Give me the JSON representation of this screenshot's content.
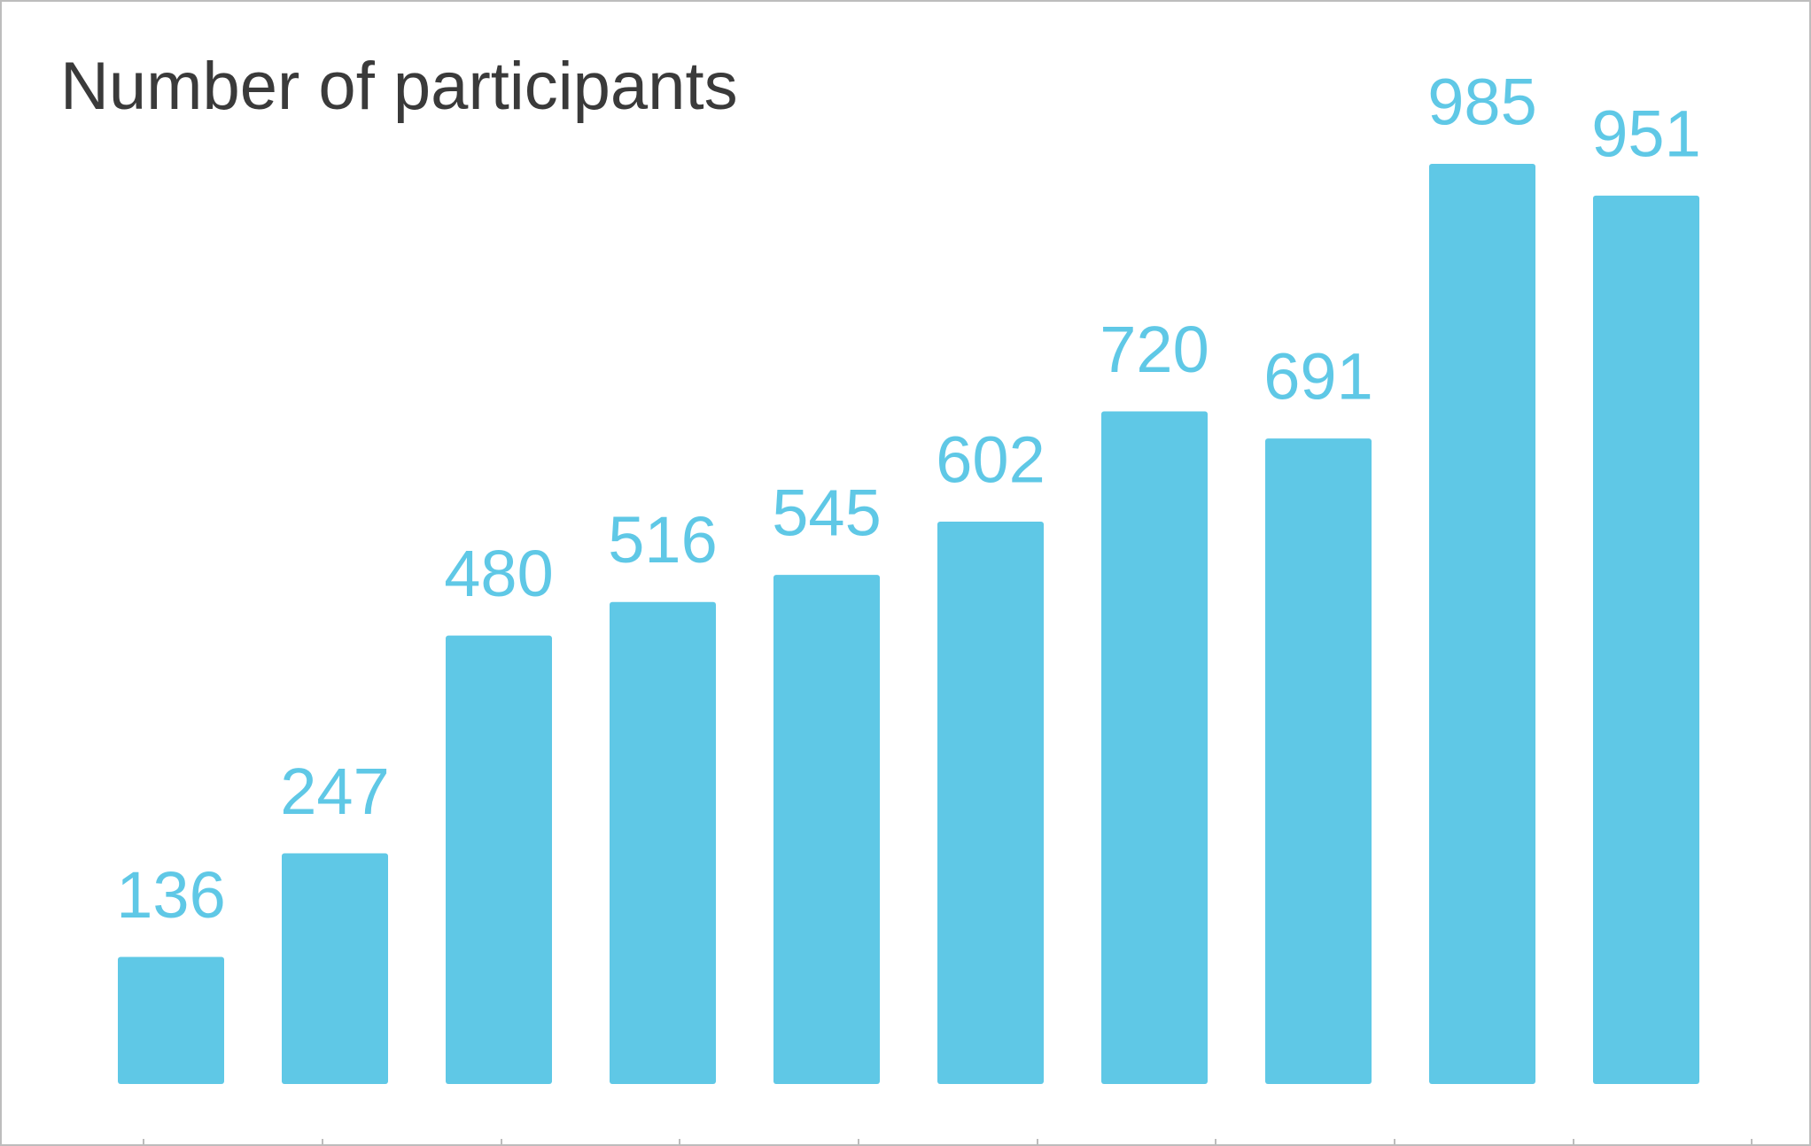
{
  "chart_data": {
    "type": "bar",
    "title": "Number of participants",
    "categories": [
      "",
      "",
      "",
      "",
      "",
      "",
      "",
      "",
      "",
      ""
    ],
    "values": [
      136,
      247,
      480,
      516,
      545,
      602,
      720,
      691,
      985,
      951
    ],
    "xlabel": "",
    "ylabel": "",
    "ylim": [
      0,
      985
    ],
    "grid": false,
    "legend": "none",
    "data_labels": true,
    "colors": {
      "bar": "#5fc8e6",
      "label": "#5fc8e6",
      "title": "#3a3a3a",
      "axis_tick": "#bdbdbd",
      "frame": "#bdbdbd"
    }
  }
}
